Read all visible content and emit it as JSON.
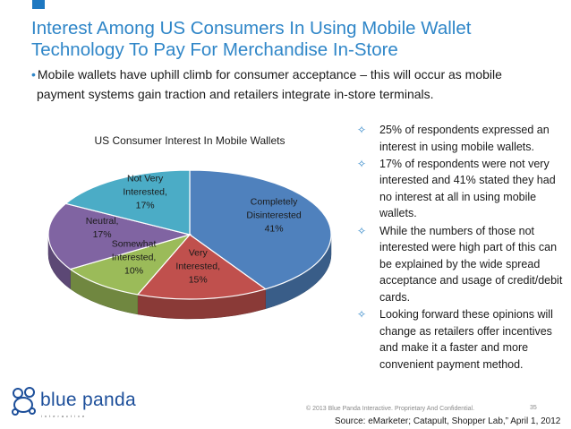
{
  "slide": {
    "title": "Interest Among US Consumers In Using Mobile Wallet Technology To Pay For Merchandise In-Store",
    "subtitle_line1": "Mobile wallets have uphill climb for consumer acceptance – this will occur as mobile",
    "subtitle_line2": "payment systems gain traction and retailers integrate in-store terminals.",
    "bullet_symbol": "•",
    "bullets": [
      "25% of respondents expressed an interest in using mobile wallets.",
      "17% of respondents were not very interested and 41% stated they had no interest at all in using mobile wallets.",
      "While the numbers of those not interested were high part of this can be explained by the wide spread acceptance and usage of credit/debit cards.",
      "Looking forward these opinions will change as retailers offer incentives and make it a faster and more convenient payment method."
    ],
    "bullet_marker": "✧",
    "accent_color": "#2f86c8"
  },
  "footer": {
    "brand": "blue panda",
    "tagline": "interactive",
    "copyright": "© 2013 Blue Panda Interactive. Proprietary And Confidential.",
    "page_number": "35",
    "source": "Source: eMarketer; Catapult, Shopper Lab,” April 1, 2012"
  },
  "chart_data": {
    "type": "pie",
    "style": "3d",
    "title": "US Consumer Interest In Mobile Wallets",
    "slices": [
      {
        "label_lines": [
          "Completely",
          "Disinterested"
        ],
        "value_label": "41%",
        "value": 41,
        "color": "#4f81bd"
      },
      {
        "label_lines": [
          "Very",
          "Interested,"
        ],
        "value_label": "15%",
        "value": 15,
        "color": "#c0504d"
      },
      {
        "label_lines": [
          "Somewhat",
          "Interested,"
        ],
        "value_label": "10%",
        "value": 10,
        "color": "#9bbb59"
      },
      {
        "label_lines": [
          "Neutral,"
        ],
        "value_label": "17%",
        "value": 17,
        "color": "#8064a2"
      },
      {
        "label_lines": [
          "Not Very",
          "Interested,"
        ],
        "value_label": "17%",
        "value": 17,
        "color": "#4bacc6"
      }
    ]
  }
}
